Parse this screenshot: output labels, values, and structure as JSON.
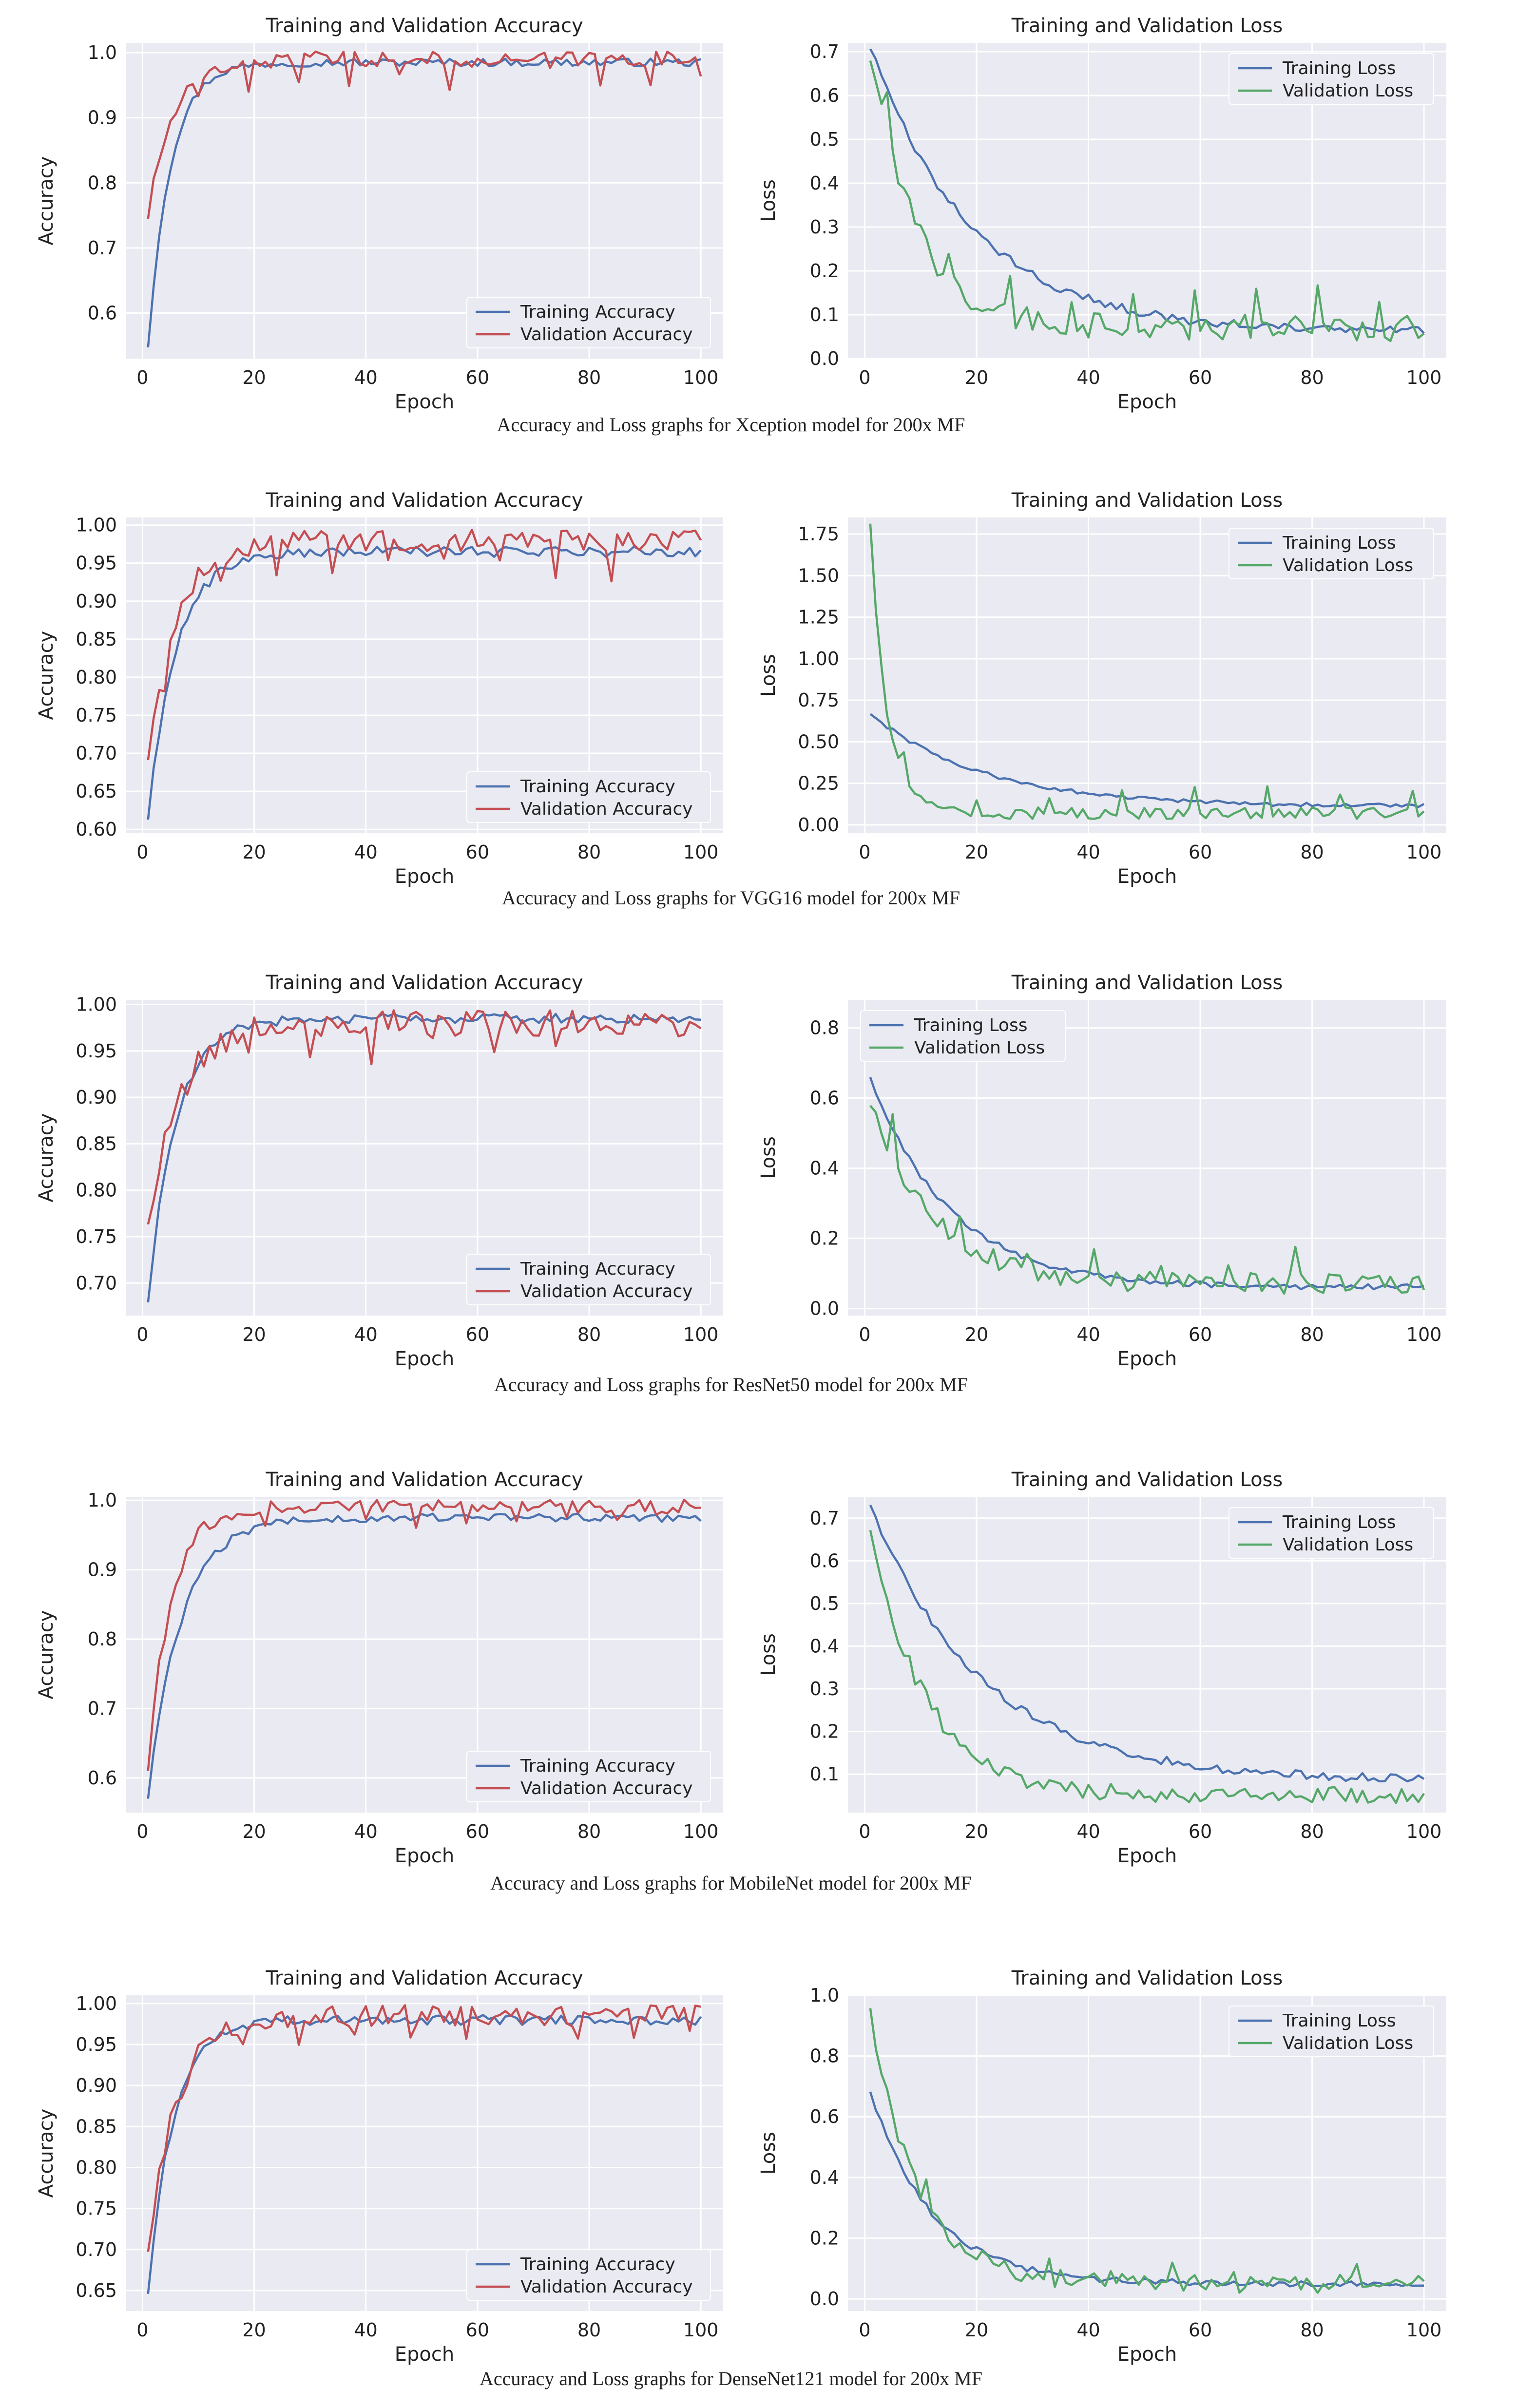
{
  "figure": {
    "captions": [
      "Accuracy and Loss graphs for Xception model for 200x MF",
      "Accuracy and Loss graphs for VGG16 model for 200x MF",
      "Accuracy and Loss graphs for ResNet50 model for 200x MF",
      "Accuracy and Loss graphs for MobileNet model for 200x MF",
      "Accuracy and Loss graphs for DenseNet121 model for 200x MF"
    ]
  },
  "colors": {
    "training": "#4C72B0",
    "validation_accuracy": "#C44E52",
    "validation_loss": "#55A868",
    "panel_background": "#EAEAF2",
    "grid": "#FFFFFF"
  },
  "chart_data": [
    {
      "type": "line",
      "title": "Training and Validation Accuracy",
      "xlabel": "Epoch",
      "ylabel": "Accuracy",
      "xlim": [
        -3,
        104
      ],
      "ylim": [
        0.53,
        1.015
      ],
      "xticks": [
        0,
        20,
        40,
        60,
        80,
        100
      ],
      "xtick_labels": [
        "0",
        "20",
        "40",
        "60",
        "80",
        "100"
      ],
      "yticks": [
        0.6,
        0.7,
        0.8,
        0.9,
        1.0
      ],
      "ytick_labels": [
        "0.6",
        "0.7",
        "0.8",
        "0.9",
        "1.0"
      ],
      "legend_position": "bottom-right",
      "series": [
        {
          "name": "Training Accuracy",
          "kind": "train",
          "start": 0.55,
          "end": 0.985,
          "rate": 0.25,
          "noise": 0.006,
          "spike_every": 0,
          "spike": 0
        },
        {
          "name": "Validation Accuracy",
          "kind": "val",
          "start": 0.75,
          "end": 0.99,
          "rate": 0.22,
          "noise": 0.012,
          "spike_every": 9,
          "spike": -0.025
        }
      ]
    },
    {
      "type": "line",
      "title": "Training and Validation Loss",
      "xlabel": "Epoch",
      "ylabel": "Loss",
      "xlim": [
        -3,
        104
      ],
      "ylim": [
        0.0,
        0.72
      ],
      "xticks": [
        0,
        20,
        40,
        60,
        80,
        100
      ],
      "xtick_labels": [
        "0",
        "20",
        "40",
        "60",
        "80",
        "100"
      ],
      "yticks": [
        0.0,
        0.1,
        0.2,
        0.3,
        0.4,
        0.5,
        0.6,
        0.7
      ],
      "ytick_labels": [
        "0.0",
        "0.1",
        "0.2",
        "0.3",
        "0.4",
        "0.5",
        "0.6",
        "0.7"
      ],
      "legend_position": "top-right",
      "series": [
        {
          "name": "Training Loss",
          "kind": "train",
          "start": 0.71,
          "end": 0.06,
          "rate": 0.055,
          "noise": 0.01,
          "spike_every": 0,
          "spike": 0
        },
        {
          "name": "Validation Loss",
          "kind": "val",
          "start": 0.69,
          "end": 0.07,
          "rate": 0.12,
          "noise": 0.03,
          "spike_every": 11,
          "spike": 0.09
        }
      ]
    },
    {
      "type": "line",
      "title": "Training and Validation Accuracy",
      "xlabel": "Epoch",
      "ylabel": "Accuracy",
      "xlim": [
        -3,
        104
      ],
      "ylim": [
        0.595,
        1.01
      ],
      "xticks": [
        0,
        20,
        40,
        60,
        80,
        100
      ],
      "xtick_labels": [
        "0",
        "20",
        "40",
        "60",
        "80",
        "100"
      ],
      "yticks": [
        0.6,
        0.65,
        0.7,
        0.75,
        0.8,
        0.85,
        0.9,
        0.95,
        1.0
      ],
      "ytick_labels": [
        "0.60",
        "0.65",
        "0.70",
        "0.75",
        "0.80",
        "0.85",
        "0.90",
        "0.95",
        "1.00"
      ],
      "legend_position": "bottom-right",
      "series": [
        {
          "name": "Training Accuracy",
          "kind": "train",
          "start": 0.615,
          "end": 0.965,
          "rate": 0.2,
          "noise": 0.007,
          "spike_every": 0,
          "spike": 0
        },
        {
          "name": "Validation Accuracy",
          "kind": "val",
          "start": 0.695,
          "end": 0.98,
          "rate": 0.2,
          "noise": 0.014,
          "spike_every": 10,
          "spike": -0.03
        }
      ]
    },
    {
      "type": "line",
      "title": "Training and Validation Loss",
      "xlabel": "Epoch",
      "ylabel": "Loss",
      "xlim": [
        -3,
        104
      ],
      "ylim": [
        -0.05,
        1.85
      ],
      "xticks": [
        0,
        20,
        40,
        60,
        80,
        100
      ],
      "xtick_labels": [
        "0",
        "20",
        "40",
        "60",
        "80",
        "100"
      ],
      "yticks": [
        0.0,
        0.25,
        0.5,
        0.75,
        1.0,
        1.25,
        1.5,
        1.75
      ],
      "ytick_labels": [
        "0.00",
        "0.25",
        "0.50",
        "0.75",
        "1.00",
        "1.25",
        "1.50",
        "1.75"
      ],
      "legend_position": "top-right",
      "series": [
        {
          "name": "Training Loss",
          "kind": "train",
          "start": 0.67,
          "end": 0.11,
          "rate": 0.05,
          "noise": 0.012,
          "spike_every": 0,
          "spike": 0
        },
        {
          "name": "Validation Loss",
          "kind": "val",
          "start": 1.82,
          "end": 0.07,
          "rate": 0.35,
          "noise": 0.035,
          "spike_every": 13,
          "spike": 0.12
        }
      ]
    },
    {
      "type": "line",
      "title": "Training and Validation Accuracy",
      "xlabel": "Epoch",
      "ylabel": "Accuracy",
      "xlim": [
        -3,
        104
      ],
      "ylim": [
        0.665,
        1.005
      ],
      "xticks": [
        0,
        20,
        40,
        60,
        80,
        100
      ],
      "xtick_labels": [
        "0",
        "20",
        "40",
        "60",
        "80",
        "100"
      ],
      "yticks": [
        0.7,
        0.75,
        0.8,
        0.85,
        0.9,
        0.95,
        1.0
      ],
      "ytick_labels": [
        "0.70",
        "0.75",
        "0.80",
        "0.85",
        "0.90",
        "0.95",
        "1.00"
      ],
      "legend_position": "bottom-right",
      "series": [
        {
          "name": "Training Accuracy",
          "kind": "train",
          "start": 0.68,
          "end": 0.985,
          "rate": 0.2,
          "noise": 0.005,
          "spike_every": 0,
          "spike": 0
        },
        {
          "name": "Validation Accuracy",
          "kind": "val",
          "start": 0.765,
          "end": 0.98,
          "rate": 0.18,
          "noise": 0.014,
          "spike_every": 11,
          "spike": -0.025
        }
      ]
    },
    {
      "type": "line",
      "title": "Training and Validation Loss",
      "xlabel": "Epoch",
      "ylabel": "Loss",
      "xlim": [
        -3,
        104
      ],
      "ylim": [
        -0.02,
        0.88
      ],
      "xticks": [
        0,
        20,
        40,
        60,
        80,
        100
      ],
      "xtick_labels": [
        "0",
        "20",
        "40",
        "60",
        "80",
        "100"
      ],
      "yticks": [
        0.0,
        0.2,
        0.4,
        0.6,
        0.8
      ],
      "ytick_labels": [
        "0.0",
        "0.2",
        "0.4",
        "0.6",
        "0.8"
      ],
      "legend_position": "top-left",
      "series": [
        {
          "name": "Training Loss",
          "kind": "train",
          "start": 0.66,
          "end": 0.06,
          "rate": 0.07,
          "noise": 0.008,
          "spike_every": 0,
          "spike": 0
        },
        {
          "name": "Validation Loss",
          "kind": "val",
          "start": 0.58,
          "end": 0.07,
          "rate": 0.09,
          "noise": 0.03,
          "spike_every": 12,
          "spike": 0.07
        }
      ]
    },
    {
      "type": "line",
      "title": "Training and Validation Accuracy",
      "xlabel": "Epoch",
      "ylabel": "Accuracy",
      "xlim": [
        -3,
        104
      ],
      "ylim": [
        0.55,
        1.005
      ],
      "xticks": [
        0,
        20,
        40,
        60,
        80,
        100
      ],
      "xtick_labels": [
        "0",
        "20",
        "40",
        "60",
        "80",
        "100"
      ],
      "yticks": [
        0.6,
        0.7,
        0.8,
        0.9,
        1.0
      ],
      "ytick_labels": [
        "0.6",
        "0.7",
        "0.8",
        "0.9",
        "1.0"
      ],
      "legend_position": "bottom-right",
      "series": [
        {
          "name": "Training Accuracy",
          "kind": "train",
          "start": 0.57,
          "end": 0.975,
          "rate": 0.17,
          "noise": 0.006,
          "spike_every": 0,
          "spike": 0
        },
        {
          "name": "Validation Accuracy",
          "kind": "val",
          "start": 0.61,
          "end": 0.99,
          "rate": 0.25,
          "noise": 0.011,
          "spike_every": 9,
          "spike": -0.02
        }
      ]
    },
    {
      "type": "line",
      "title": "Training and Validation Loss",
      "xlabel": "Epoch",
      "ylabel": "Loss",
      "xlim": [
        -3,
        104
      ],
      "ylim": [
        0.01,
        0.75
      ],
      "xticks": [
        0,
        20,
        40,
        60,
        80,
        100
      ],
      "xtick_labels": [
        "0",
        "20",
        "40",
        "60",
        "80",
        "100"
      ],
      "yticks": [
        0.1,
        0.2,
        0.3,
        0.4,
        0.5,
        0.6,
        0.7
      ],
      "ytick_labels": [
        "0.1",
        "0.2",
        "0.3",
        "0.4",
        "0.5",
        "0.6",
        "0.7"
      ],
      "legend_position": "top-right",
      "series": [
        {
          "name": "Training Loss",
          "kind": "train",
          "start": 0.73,
          "end": 0.085,
          "rate": 0.05,
          "noise": 0.01,
          "spike_every": 0,
          "spike": 0
        },
        {
          "name": "Validation Loss",
          "kind": "val",
          "start": 0.67,
          "end": 0.05,
          "rate": 0.1,
          "noise": 0.02,
          "spike_every": 14,
          "spike": 0.06
        }
      ]
    },
    {
      "type": "line",
      "title": "Training and Validation Accuracy",
      "xlabel": "Epoch",
      "ylabel": "Accuracy",
      "xlim": [
        -3,
        104
      ],
      "ylim": [
        0.625,
        1.01
      ],
      "xticks": [
        0,
        20,
        40,
        60,
        80,
        100
      ],
      "xtick_labels": [
        "0",
        "20",
        "40",
        "60",
        "80",
        "100"
      ],
      "yticks": [
        0.65,
        0.7,
        0.75,
        0.8,
        0.85,
        0.9,
        0.95,
        1.0
      ],
      "ytick_labels": [
        "0.65",
        "0.70",
        "0.75",
        "0.80",
        "0.85",
        "0.90",
        "0.95",
        "1.00"
      ],
      "legend_position": "bottom-right",
      "series": [
        {
          "name": "Training Accuracy",
          "kind": "train",
          "start": 0.645,
          "end": 0.98,
          "rate": 0.22,
          "noise": 0.006,
          "spike_every": 0,
          "spike": 0
        },
        {
          "name": "Validation Accuracy",
          "kind": "val",
          "start": 0.695,
          "end": 0.985,
          "rate": 0.2,
          "noise": 0.013,
          "spike_every": 10,
          "spike": -0.025
        }
      ]
    },
    {
      "type": "line",
      "title": "Training and Validation Loss",
      "xlabel": "Epoch",
      "ylabel": "Loss",
      "xlim": [
        -3,
        104
      ],
      "ylim": [
        -0.04,
        1.0
      ],
      "xticks": [
        0,
        20,
        40,
        60,
        80,
        100
      ],
      "xtick_labels": [
        "0",
        "20",
        "40",
        "60",
        "80",
        "100"
      ],
      "yticks": [
        0.0,
        0.2,
        0.4,
        0.6,
        0.8,
        1.0
      ],
      "ytick_labels": [
        "0.0",
        "0.2",
        "0.4",
        "0.6",
        "0.8",
        "1.0"
      ],
      "legend_position": "top-right",
      "series": [
        {
          "name": "Training Loss",
          "kind": "train",
          "start": 0.68,
          "end": 0.05,
          "rate": 0.09,
          "noise": 0.01,
          "spike_every": 0,
          "spike": 0
        },
        {
          "name": "Validation Loss",
          "kind": "val",
          "start": 0.95,
          "end": 0.05,
          "rate": 0.12,
          "noise": 0.03,
          "spike_every": 11,
          "spike": 0.06
        }
      ]
    }
  ]
}
